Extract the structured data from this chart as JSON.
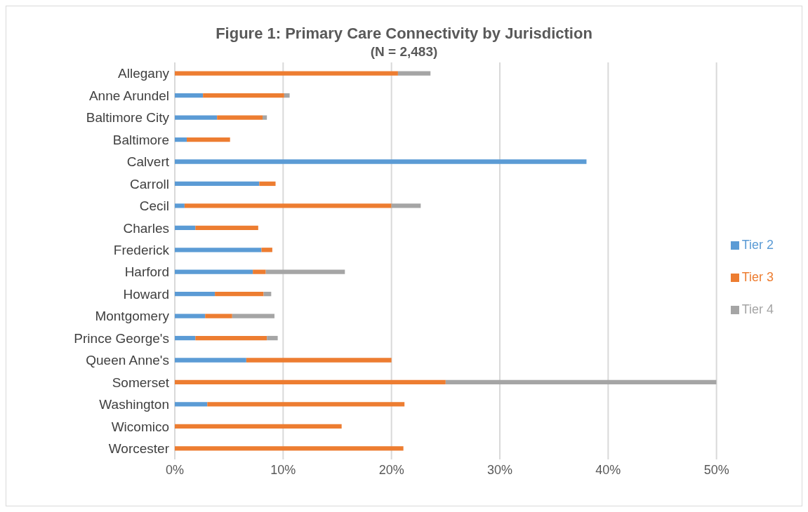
{
  "chart_data": {
    "type": "bar",
    "orientation": "horizontal",
    "stacked": true,
    "title": "Figure 1: Primary Care Connectivity by Jurisdiction",
    "subtitle": "(N = 2,483)",
    "categories": [
      "Allegany",
      "Anne Arundel",
      "Baltimore City",
      "Baltimore",
      "Calvert",
      "Carroll",
      "Cecil",
      "Charles",
      "Frederick",
      "Harford",
      "Howard",
      "Montgomery",
      "Prince George's",
      "Queen Anne's",
      "Somerset",
      "Washington",
      "Wicomico",
      "Worcester"
    ],
    "series": [
      {
        "name": "Tier 2",
        "color": "#5b9bd5",
        "values": [
          0,
          2.6,
          3.9,
          1.1,
          38.0,
          7.8,
          0.9,
          1.9,
          8.0,
          7.2,
          3.7,
          2.8,
          1.9,
          6.6,
          0,
          3.0,
          0,
          0
        ]
      },
      {
        "name": "Tier 3",
        "color": "#ed7d31",
        "values": [
          20.6,
          7.5,
          4.2,
          4.0,
          0,
          1.5,
          19.1,
          5.8,
          1.0,
          1.2,
          4.5,
          2.5,
          6.6,
          13.4,
          25.0,
          18.2,
          15.4,
          21.1
        ]
      },
      {
        "name": "Tier 4",
        "color": "#a5a5a5",
        "values": [
          3.0,
          0.5,
          0.4,
          0,
          0,
          0,
          2.7,
          0,
          0,
          7.3,
          0.7,
          3.9,
          1.0,
          0,
          25.0,
          0,
          0,
          0
        ]
      }
    ],
    "xlim": [
      0,
      50
    ],
    "xticks": [
      {
        "value": 0,
        "label": "0%"
      },
      {
        "value": 10,
        "label": "10%"
      },
      {
        "value": 20,
        "label": "20%"
      },
      {
        "value": 30,
        "label": "30%"
      },
      {
        "value": 40,
        "label": "40%"
      },
      {
        "value": 50,
        "label": "50%"
      }
    ],
    "grid": "x",
    "legend": "right"
  }
}
